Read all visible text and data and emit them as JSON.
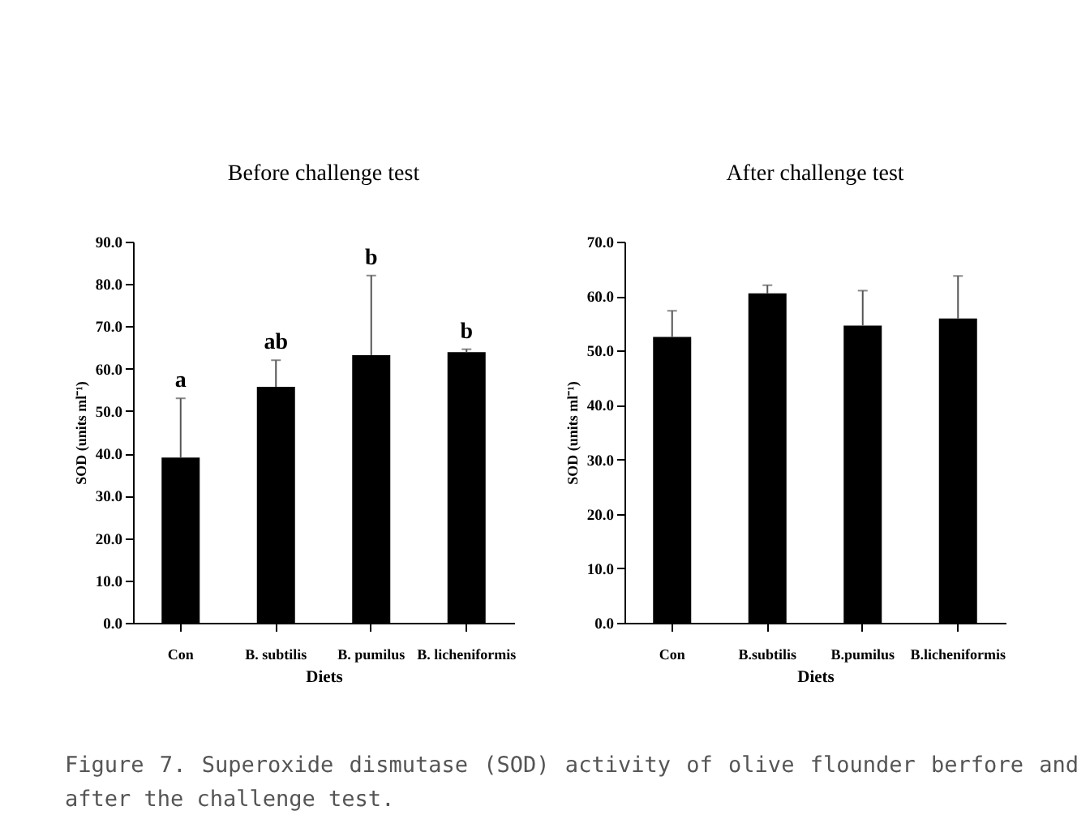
{
  "chart_data": [
    {
      "type": "bar",
      "title": "Before challenge test",
      "xlabel": "Diets",
      "ylabel": "SOD (units ml⁻¹)",
      "categories": [
        "Con",
        "B. subtilis",
        "B. pumilus",
        "B. licheniformis"
      ],
      "values": [
        39.0,
        55.7,
        63.2,
        63.9
      ],
      "color": "#000000",
      "errors": [
        [
          39.0,
          53.0
        ],
        [
          55.7,
          62.0
        ],
        [
          63.2,
          82.0
        ],
        [
          63.9,
          64.6
        ]
      ],
      "ylim": [
        0,
        90
      ],
      "yticks": [
        {
          "value": 0,
          "label": "0.0"
        },
        {
          "value": 10,
          "label": "10.0"
        },
        {
          "value": 20,
          "label": "20.0"
        },
        {
          "value": 30,
          "label": "30.0"
        },
        {
          "value": 40,
          "label": "40.0"
        },
        {
          "value": 50,
          "label": "50.0"
        },
        {
          "value": 60,
          "label": "60.0"
        },
        {
          "value": 70,
          "label": "70.0"
        },
        {
          "value": 80,
          "label": "80.0"
        },
        {
          "value": 90,
          "label": "90.0"
        }
      ],
      "annotations": [
        {
          "text": "a",
          "x": "Con",
          "y": 53.0
        },
        {
          "text": "ab",
          "x": "B. subtilis",
          "y": 62.0
        },
        {
          "text": "b",
          "x": "B. pumilus",
          "y": 82.0
        },
        {
          "text": "b",
          "x": "B. licheniformis",
          "y": 64.6
        },
        "Figure 7. Superoxide dismutase (SOD) activity of olive flounder berfore and after the challenge test."
      ],
      "grid": false
    },
    {
      "type": "bar",
      "title": "After challenge test",
      "xlabel": "Diets",
      "ylabel": "SOD (units ml⁻¹)",
      "categories": [
        "Con",
        "B.subtilis",
        "B.pumilus",
        "B.licheniformis"
      ],
      "values": [
        52.5,
        60.5,
        54.6,
        55.9
      ],
      "color": "#000000",
      "errors": [
        [
          52.5,
          57.3
        ],
        [
          60.5,
          62.0
        ],
        [
          54.6,
          61.0
        ],
        [
          55.9,
          63.7
        ]
      ],
      "ylim": [
        0,
        70
      ],
      "yticks": [
        {
          "value": 0,
          "label": "0.0"
        },
        {
          "value": 10,
          "label": "10.0"
        },
        {
          "value": 20,
          "label": "20.0"
        },
        {
          "value": 30,
          "label": "30.0"
        },
        {
          "value": 40,
          "label": "40.0"
        },
        {
          "value": 50,
          "label": "50.0"
        },
        {
          "value": 60,
          "label": "60.0"
        },
        {
          "value": 70,
          "label": "70.0"
        }
      ],
      "grid": false
    }
  ]
}
